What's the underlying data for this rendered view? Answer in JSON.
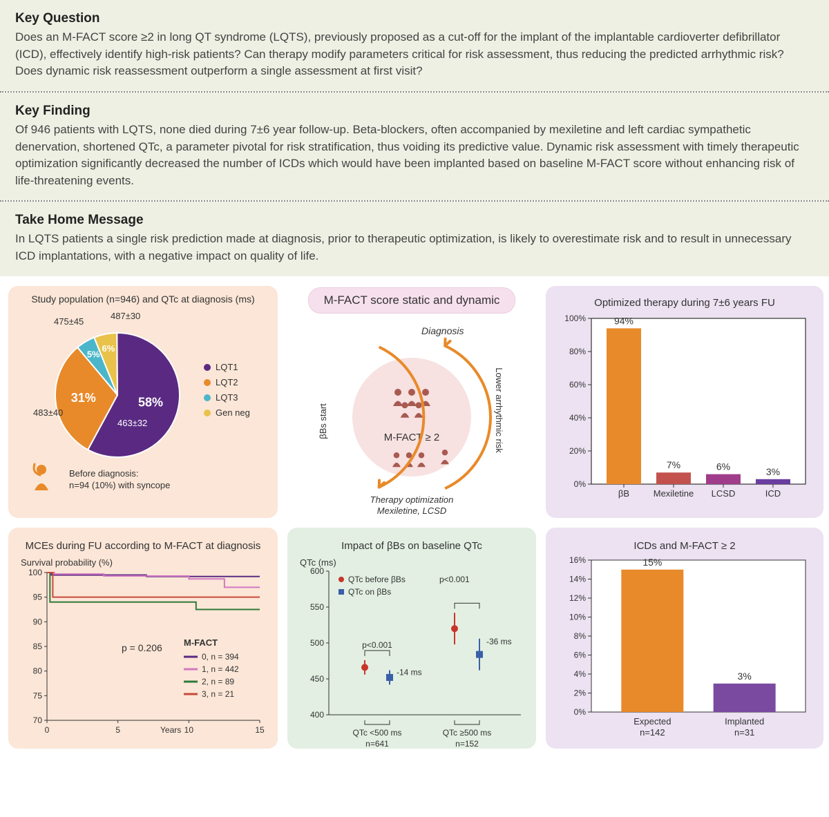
{
  "sections": {
    "key_question": {
      "title": "Key Question",
      "body": "Does an M-FACT score ≥2 in long QT syndrome (LQTS), previously proposed as a cut-off for the implant of the implantable cardioverter defibrillator (ICD), effectively identify high-risk patients? Can therapy modify parameters critical for risk assessment, thus reducing the predicted arrhythmic risk? Does dynamic risk reassessment outperform a single assessment at first visit?"
    },
    "key_finding": {
      "title": "Key Finding",
      "body": "Of 946 patients with LQTS, none died during 7±6 year follow-up. Beta-blockers, often accompanied by mexiletine and left cardiac sympathetic denervation, shortened QTc, a parameter pivotal for risk stratification, thus voiding its predictive value. Dynamic risk assessment with timely therapeutic optimization significantly decreased the number of ICDs which would have been implanted based on baseline M-FACT score without enhancing risk of life-threatening events."
    },
    "take_home": {
      "title": "Take Home Message",
      "body": "In LQTS patients a single risk prediction made at diagnosis, prior to therapeutic optimization, is likely to overestimate risk and to result in unnecessary ICD implantations, with a negative impact on quality of life."
    }
  },
  "layout": {
    "text_bg": "#eef0e3",
    "peach": "#fbe6d7",
    "green": "#e2efe2",
    "lilac": "#ece2f2"
  },
  "pie": {
    "title": "Study population (n=946) and QTc at diagnosis (ms)",
    "slices": [
      {
        "label": "LQT1",
        "pct": 58,
        "color": "#5a2a82",
        "pct_label": "58%",
        "qtc": "463±32"
      },
      {
        "label": "LQT2",
        "pct": 31,
        "color": "#e88a2a",
        "pct_label": "31%",
        "qtc": "483±40"
      },
      {
        "label": "LQT3",
        "pct": 5,
        "color": "#4bb6c9",
        "pct_label": "5%",
        "qtc": "475±45"
      },
      {
        "label": "Gen neg",
        "pct": 6,
        "color": "#e8c24a",
        "pct_label": "6%",
        "qtc": "487±30"
      }
    ],
    "legend": [
      "LQT1",
      "LQT2",
      "LQT3",
      "Gen neg"
    ],
    "legend_colors": [
      "#5a2a82",
      "#e88a2a",
      "#4bb6c9",
      "#e8c24a"
    ],
    "below_text": "Before diagnosis:\nn=94 (10%) with syncope"
  },
  "center_top": {
    "pill": "M-FACT score static and dynamic",
    "diagnosis": "Diagnosis",
    "mfact": "M-FACT ≥ 2",
    "bbs_start": "βBs start",
    "therapy": "Therapy optimization",
    "therapy2": "Mexiletine, LCSD",
    "lower_risk": "Lower arrhythmic risk"
  },
  "therapy_bar": {
    "title": "Optimized therapy during 7±6 years FU",
    "y_ticks": [
      "0%",
      "20%",
      "40%",
      "60%",
      "80%",
      "100%"
    ],
    "bars": [
      {
        "label": "βB",
        "value": 94,
        "color": "#e88a2a",
        "text": "94%"
      },
      {
        "label": "Mexiletine",
        "value": 7,
        "color": "#c3524f",
        "text": "7%"
      },
      {
        "label": "LCSD",
        "value": 6,
        "color": "#a03d8a",
        "text": "6%"
      },
      {
        "label": "ICD",
        "value": 3,
        "color": "#6a3da0",
        "text": "3%"
      }
    ]
  },
  "survival": {
    "title": "MCEs during FU according to M-FACT at diagnosis",
    "ylabel": "Survival probability (%)",
    "y_ticks": [
      70,
      75,
      80,
      85,
      90,
      95,
      100
    ],
    "x_ticks": [
      0,
      5,
      10,
      15
    ],
    "xlabel": "Years",
    "p_text": "p = 0.206",
    "legend_title": "M-FACT",
    "legend": [
      {
        "label": "0, n = 394",
        "color": "#5a2a82"
      },
      {
        "label": "1, n = 442",
        "color": "#d178c2"
      },
      {
        "label": "2, n = 89",
        "color": "#2f7a3a"
      },
      {
        "label": "3, n = 21",
        "color": "#c94a3b"
      }
    ],
    "series": {
      "s0": [
        [
          0,
          100
        ],
        [
          0.3,
          100
        ],
        [
          0.31,
          99.5
        ],
        [
          7,
          99.5
        ],
        [
          7.01,
          99.2
        ],
        [
          15,
          99.2
        ]
      ],
      "s1": [
        [
          0,
          100
        ],
        [
          0.5,
          100
        ],
        [
          0.51,
          99.7
        ],
        [
          4,
          99.7
        ],
        [
          4.01,
          99.3
        ],
        [
          10,
          99.3
        ],
        [
          10.01,
          98.7
        ],
        [
          12.5,
          98.7
        ],
        [
          12.51,
          97
        ],
        [
          15,
          97
        ]
      ],
      "s2": [
        [
          0,
          100
        ],
        [
          0.2,
          100
        ],
        [
          0.21,
          94
        ],
        [
          10.5,
          94
        ],
        [
          10.51,
          92.5
        ],
        [
          15,
          92.5
        ]
      ],
      "s3": [
        [
          0,
          100
        ],
        [
          0.4,
          100
        ],
        [
          0.41,
          95
        ],
        [
          8,
          95
        ],
        [
          15,
          95
        ]
      ]
    }
  },
  "qtc_impact": {
    "title": "Impact of βBs on baseline QTc",
    "ylabel": "QTc (ms)",
    "y_ticks": [
      400,
      450,
      500,
      550,
      600
    ],
    "legend": [
      {
        "label": "QTc before βBs",
        "color": "#c9342b",
        "shape": "circle"
      },
      {
        "label": "QTc on βBs",
        "color": "#3a5fa8",
        "shape": "square"
      }
    ],
    "p_left": "p<0.001",
    "p_right": "p<0.001",
    "delta_left": "-14 ms",
    "delta_right": "-36 ms",
    "group_left": {
      "label": "QTc <500 ms",
      "n": "n=641",
      "before": 466,
      "before_err": 10,
      "after": 452,
      "after_err": 10
    },
    "group_right": {
      "label": "QTc ≥500 ms",
      "n": "n=152",
      "before": 520,
      "before_err": 22,
      "after": 484,
      "after_err": 22
    }
  },
  "icd_bar": {
    "title": "ICDs and M-FACT ≥ 2",
    "y_ticks": [
      "0%",
      "2%",
      "4%",
      "6%",
      "8%",
      "10%",
      "12%",
      "14%",
      "16%"
    ],
    "bars": [
      {
        "label": "Expected",
        "sub": "n=142",
        "value": 15,
        "text": "15%",
        "color": "#e88a2a"
      },
      {
        "label": "Implanted",
        "sub": "n=31",
        "value": 3,
        "text": "3%",
        "color": "#7a4aa0"
      }
    ]
  }
}
